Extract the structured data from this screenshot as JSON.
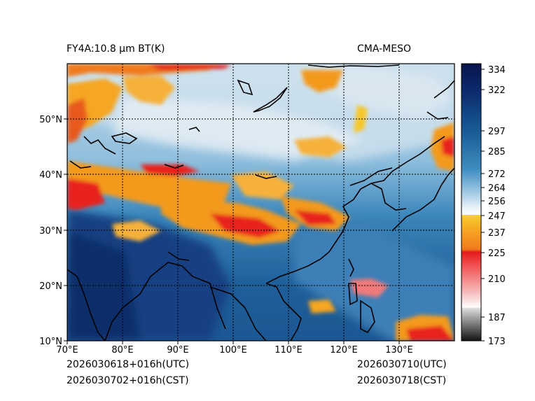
{
  "header": {
    "left_title": "FY4A:10.8 µm BT(K)",
    "right_title": "CMA-MESO"
  },
  "footer": {
    "init_utc": "2026030618+016h(UTC)",
    "init_cst": "2026030702+016h(CST)",
    "valid_utc": "2026030710(UTC)",
    "valid_cst": "2026030718(CST)"
  },
  "map": {
    "lon_labels": [
      "70°E",
      "80°E",
      "90°E",
      "100°E",
      "110°E",
      "120°E",
      "130°E"
    ],
    "lat_labels": [
      "10°N",
      "20°N",
      "30°N",
      "40°N",
      "50°N"
    ],
    "extent": {
      "lon_min": 70,
      "lon_max": 140,
      "lat_min": 10,
      "lat_max": 60
    }
  },
  "colorbar": {
    "labels": [
      "334",
      "322",
      "297",
      "285",
      "272",
      "264",
      "256",
      "247",
      "237",
      "225",
      "210",
      "187",
      "173"
    ],
    "values": [
      334,
      322,
      297,
      285,
      272,
      264,
      256,
      247,
      237,
      225,
      210,
      187,
      173
    ],
    "min": 173,
    "max": 338
  },
  "colors": {
    "deep_navy": "#0b1f5c",
    "ocean_blue": "#1f5f99",
    "mid_blue": "#3b86bb",
    "light_blue": "#a9cce4",
    "cloud_white": "#e6eff5",
    "orange": "#f39a1e",
    "yellow": "#f7c72c",
    "red": "#e8231b",
    "coast": "#000000"
  }
}
